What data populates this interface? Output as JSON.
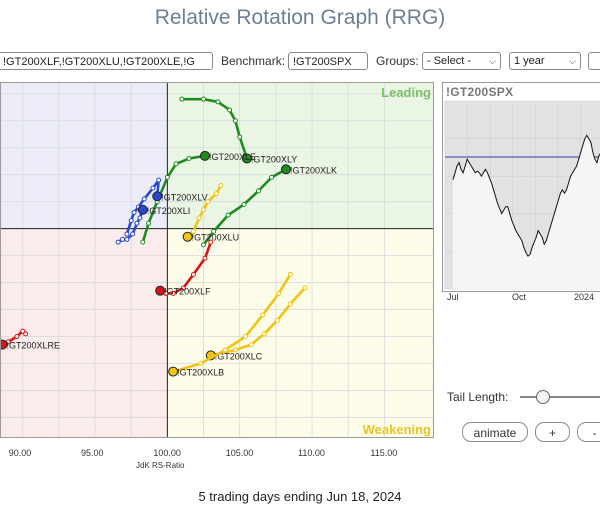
{
  "page_title": "Relative Rotation Graph (RRG)",
  "controls": {
    "symbols_value": "!GT200XLF,!GT200XLU,!GT200XLE,!G",
    "benchmark_label": "Benchmark:",
    "benchmark_value": "!GT200SPX",
    "groups_label": "Groups:",
    "groups_value": "- Select -",
    "period_value": "1 year",
    "third_select_value": ""
  },
  "quadrants": {
    "leading": "Leading",
    "weakening": "Weakening"
  },
  "colors": {
    "leading_bg": "#eaf5e4",
    "weakening_bg": "#fdfce9",
    "lagging_bg": "#fbecec",
    "improving_bg": "#ececf9",
    "leading_text": "#7cbf6a",
    "weakening_text": "#e8c52a",
    "green": "#1d8c1d",
    "yellow": "#f1c40f",
    "red": "#d81414",
    "blue": "#2848d0"
  },
  "chart_data": {
    "type": "scatter",
    "xlabel": "JdK RS-Ratio",
    "ylabel": "",
    "x_ticks": [
      "90.00",
      "95.00",
      "100.00",
      "105.00",
      "110.00",
      "115.00"
    ],
    "xlim": [
      88.5,
      118.5
    ],
    "ylim": [
      92.2,
      105.4
    ],
    "series": [
      {
        "name": "!GT200XLY",
        "color": "#1d8c1d",
        "points": [
          [
            101.0,
            104.8
          ],
          [
            102.5,
            104.8
          ],
          [
            103.5,
            104.7
          ],
          [
            104.3,
            104.4
          ],
          [
            104.7,
            104.0
          ],
          [
            105.0,
            103.4
          ],
          [
            105.5,
            102.6
          ]
        ]
      },
      {
        "name": "!GT200XLE",
        "color": "#1d8c1d",
        "points": [
          [
            98.3,
            99.5
          ],
          [
            98.7,
            100.2
          ],
          [
            99.3,
            101.0
          ],
          [
            100.0,
            101.9
          ],
          [
            100.6,
            102.4
          ],
          [
            101.5,
            102.6
          ],
          [
            102.6,
            102.7
          ]
        ]
      },
      {
        "name": "!GT200XLK",
        "color": "#1d8c1d",
        "points": [
          [
            102.5,
            99.4
          ],
          [
            103.2,
            99.9
          ],
          [
            104.2,
            100.5
          ],
          [
            105.3,
            100.9
          ],
          [
            106.3,
            101.4
          ],
          [
            107.2,
            101.9
          ],
          [
            108.2,
            102.2
          ]
        ]
      },
      {
        "name": "!GT200XLV",
        "color": "#2848d0",
        "points": [
          [
            97.2,
            99.8
          ],
          [
            97.5,
            100.3
          ],
          [
            97.7,
            100.6
          ],
          [
            98.0,
            100.8
          ],
          [
            98.4,
            101.1
          ],
          [
            99.0,
            101.5
          ],
          [
            99.4,
            101.8
          ],
          [
            99.3,
            101.2
          ]
        ]
      },
      {
        "name": "!GT200XLI",
        "color": "#2848d0",
        "points": [
          [
            96.6,
            99.5
          ],
          [
            96.9,
            99.6
          ],
          [
            97.2,
            99.6
          ],
          [
            97.6,
            99.8
          ],
          [
            97.9,
            100.2
          ],
          [
            98.1,
            100.4
          ],
          [
            98.3,
            100.7
          ]
        ]
      },
      {
        "name": "!GT200XLU",
        "color": "#f1c40f",
        "points": [
          [
            103.7,
            101.6
          ],
          [
            103.4,
            101.3
          ],
          [
            102.8,
            101.0
          ],
          [
            102.5,
            100.7
          ],
          [
            102.2,
            100.4
          ],
          [
            101.8,
            99.9
          ],
          [
            101.4,
            99.7
          ]
        ]
      },
      {
        "name": "!GT200XLF",
        "color": "#d81414",
        "points": [
          [
            103.0,
            99.5
          ],
          [
            102.6,
            98.9
          ],
          [
            101.8,
            98.3
          ],
          [
            101.1,
            97.8
          ],
          [
            100.4,
            97.6
          ],
          [
            99.9,
            97.6
          ],
          [
            99.5,
            97.7
          ]
        ]
      },
      {
        "name": "!GT200XLC",
        "color": "#f1c40f",
        "points": [
          [
            109.5,
            97.8
          ],
          [
            108.5,
            97.2
          ],
          [
            107.6,
            96.6
          ],
          [
            106.7,
            96.1
          ],
          [
            105.8,
            95.7
          ],
          [
            104.7,
            95.5
          ],
          [
            103.0,
            95.3
          ]
        ]
      },
      {
        "name": "!GT200XLB",
        "color": "#f1c40f",
        "points": [
          [
            108.5,
            98.3
          ],
          [
            107.7,
            97.6
          ],
          [
            106.6,
            96.8
          ],
          [
            105.4,
            96.0
          ],
          [
            104.0,
            95.5
          ],
          [
            102.3,
            95.0
          ],
          [
            100.4,
            94.7
          ]
        ]
      },
      {
        "name": "!GT200XLRE",
        "color": "#d81414",
        "points": [
          [
            90.2,
            96.1
          ],
          [
            90.0,
            96.2
          ],
          [
            89.6,
            96.0
          ],
          [
            89.0,
            95.8
          ],
          [
            88.6,
            95.7
          ]
        ]
      }
    ],
    "crosshair": [
      100,
      100
    ]
  },
  "benchmark_chart": {
    "title": "!GT200SPX",
    "month_labels": [
      "Jul",
      "Oct",
      "2024"
    ],
    "values": [
      62,
      66,
      70,
      72,
      68,
      66,
      70,
      74,
      72,
      70,
      68,
      66,
      67,
      66,
      64,
      66,
      68,
      66,
      63,
      60,
      56,
      52,
      48,
      45,
      42,
      44,
      46,
      46,
      42,
      38,
      35,
      32,
      30,
      28,
      26,
      22,
      19,
      17,
      18,
      22,
      25,
      28,
      32,
      30,
      28,
      24,
      26,
      30,
      34,
      38,
      42,
      46,
      50,
      54,
      56,
      54,
      56,
      60,
      64,
      66,
      68,
      70,
      74,
      78,
      82,
      86,
      88,
      86,
      84,
      78,
      74,
      72,
      76,
      78,
      80
    ]
  },
  "tail_length_label": "Tail Length:",
  "buttons": {
    "animate": "animate",
    "plus": "+",
    "minus": "-"
  },
  "footer_text": "5 trading days ending Jun 18, 2024"
}
